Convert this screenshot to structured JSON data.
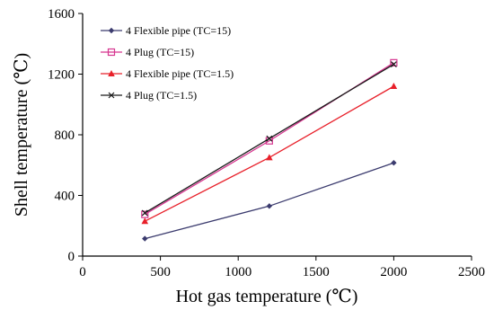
{
  "chart_data": {
    "type": "line",
    "xlabel": "Hot gas temperature (℃)",
    "ylabel": "Shell temperature (℃)",
    "xlim": [
      0,
      2500
    ],
    "ylim": [
      0,
      1600
    ],
    "x_ticks": [
      "0",
      "500",
      "1000",
      "1500",
      "2000",
      "2500"
    ],
    "y_ticks": [
      "0",
      "400",
      "800",
      "1200",
      "1600"
    ],
    "grid": false,
    "legend_position": "top-left",
    "series": [
      {
        "name": "4 Flexible pipe (TC=15)",
        "color": "#3b3b6e",
        "marker": "diamond",
        "x": [
          400,
          1200,
          2000
        ],
        "y": [
          115,
          330,
          615
        ]
      },
      {
        "name": "4 Plug (TC=15)",
        "color": "#d6358f",
        "marker": "open-square",
        "x": [
          400,
          1200,
          2000
        ],
        "y": [
          275,
          760,
          1275
        ]
      },
      {
        "name": "4 Flexible pipe (TC=1.5)",
        "color": "#e8202a",
        "marker": "triangle",
        "x": [
          400,
          1200,
          2000
        ],
        "y": [
          230,
          650,
          1120
        ]
      },
      {
        "name": "4 Plug (TC=1.5)",
        "color": "#1a1a1a",
        "marker": "x",
        "x": [
          400,
          1200,
          2000
        ],
        "y": [
          285,
          775,
          1265
        ]
      }
    ]
  }
}
